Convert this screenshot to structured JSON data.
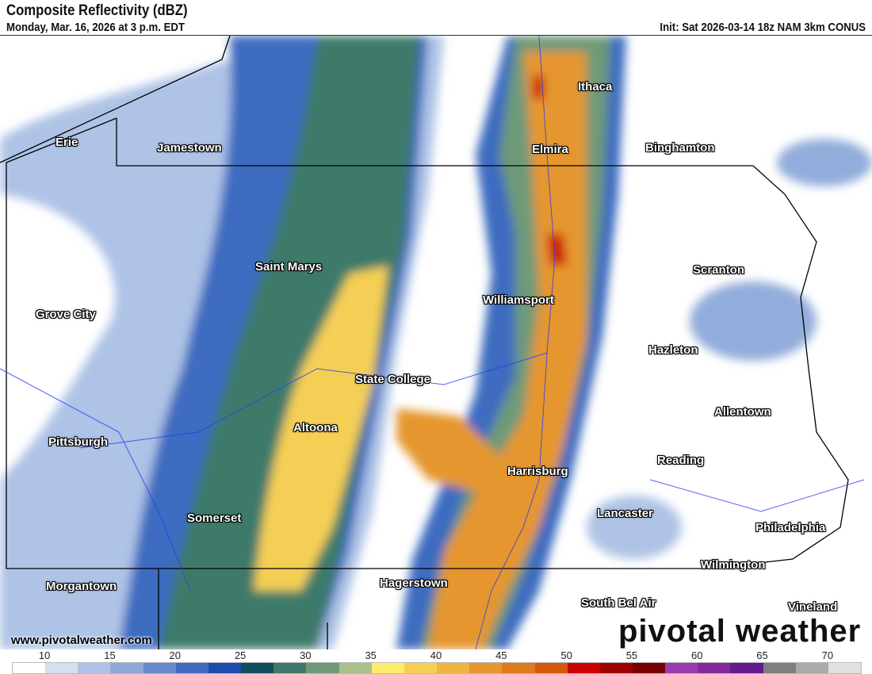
{
  "header": {
    "title": "Composite Reflectivity (dBZ)",
    "valid_time": "Monday, Mar. 16, 2026 at 3 p.m. EDT",
    "init": "Init: Sat 2026-03-14 18z NAM 3km CONUS"
  },
  "cities": [
    "Erie",
    "Jamestown",
    "Ithaca",
    "Elmira",
    "Binghamton",
    "Saint Marys",
    "Scranton",
    "Williamsport",
    "Grove City",
    "Hazleton",
    "State College",
    "Allentown",
    "Altoona",
    "Pittsburgh",
    "Reading",
    "Harrisburg",
    "Somerset",
    "Lancaster",
    "Philadelphia",
    "Wilmington",
    "Morgantown",
    "Hagerstown",
    "South Bel Air",
    "Vineland"
  ],
  "watermark": {
    "site": "www.pivotalweather.com",
    "logo": "pivotal weather"
  },
  "colorbar": {
    "unit": "dBZ",
    "ticks": [
      "10",
      "15",
      "20",
      "25",
      "30",
      "35",
      "40",
      "45",
      "50",
      "55",
      "60",
      "65",
      "70"
    ],
    "colors": [
      "#ffffff",
      "#d4dff0",
      "#aec3e6",
      "#8ca9da",
      "#6489cc",
      "#3e6cc0",
      "#1a4db0",
      "#0d4f5a",
      "#3e7a6b",
      "#6e9a78",
      "#a9c08b",
      "#fcee6a",
      "#f5cf55",
      "#efb53f",
      "#e5962d",
      "#de7a1c",
      "#d35a0a",
      "#cc0000",
      "#a00000",
      "#780000",
      "#9c3bb0",
      "#822a9c",
      "#621a90",
      "#7f7f7f",
      "#aaaaaa",
      "#e0e0e0"
    ]
  }
}
